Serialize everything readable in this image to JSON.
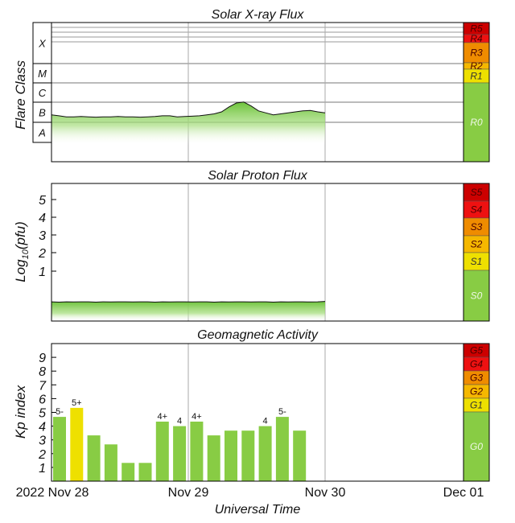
{
  "chart_data": [
    {
      "type": "area",
      "title": "Solar X-ray Flux",
      "ylabel": "Flare Class",
      "flare_classes": [
        "X",
        "M",
        "C",
        "B",
        "A"
      ],
      "x_labels": [
        "2022 Nov 28",
        "Nov 29",
        "Nov 30",
        "Dec 01"
      ],
      "xlabel": "Universal Time",
      "series": [
        {
          "values": [
            2.4,
            2.35,
            2.3,
            2.3,
            2.32,
            2.3,
            2.28,
            2.3,
            2.3,
            2.32,
            2.3,
            2.3,
            2.28,
            2.3,
            2.32,
            2.35,
            2.35,
            2.3,
            2.32,
            2.33,
            2.35,
            2.4,
            2.45,
            2.55,
            2.8,
            3.0,
            3.05,
            2.85,
            2.6,
            2.5,
            2.4,
            2.45,
            2.5,
            2.55,
            2.6,
            2.62,
            2.55,
            2.5
          ]
        }
      ],
      "scale": [
        {
          "label": "R5",
          "color": "#cc0000"
        },
        {
          "label": "R4",
          "color": "#ee1111"
        },
        {
          "label": "R3",
          "color": "#ef8c00"
        },
        {
          "label": "R2",
          "color": "#f5b800"
        },
        {
          "label": "R1",
          "color": "#eee000"
        },
        {
          "label": "R0",
          "color": "#88cc44"
        }
      ]
    },
    {
      "type": "area",
      "title": "Solar Proton Flux",
      "ylabel": "Log10(pfu)",
      "ylabel_main": "Log",
      "ylabel_sub": "10",
      "ylabel_tail": "(pfu)",
      "yticks": [
        "5",
        "4",
        "3",
        "2",
        "1"
      ],
      "series": [
        {
          "values": [
            -0.7,
            -0.72,
            -0.7,
            -0.71,
            -0.7,
            -0.7,
            -0.72,
            -0.7,
            -0.71,
            -0.7,
            -0.7,
            -0.71,
            -0.7,
            -0.7,
            -0.72,
            -0.7,
            -0.71,
            -0.7,
            -0.7,
            -0.71,
            -0.7,
            -0.7,
            -0.72,
            -0.7,
            -0.71,
            -0.7,
            -0.7,
            -0.71,
            -0.7,
            -0.7,
            -0.72,
            -0.7,
            -0.71,
            -0.7,
            -0.7,
            -0.71,
            -0.7,
            -0.68
          ]
        }
      ],
      "scale": [
        {
          "label": "S5",
          "color": "#cc0000"
        },
        {
          "label": "S4",
          "color": "#ee1111"
        },
        {
          "label": "S3",
          "color": "#ef8c00"
        },
        {
          "label": "S2",
          "color": "#f5b800"
        },
        {
          "label": "S1",
          "color": "#eee000"
        },
        {
          "label": "S0",
          "color": "#88cc44"
        }
      ]
    },
    {
      "type": "bar",
      "title": "Geomagnetic Activity",
      "ylabel": "Kp index",
      "yticks": [
        "9",
        "8",
        "7",
        "6",
        "5",
        "4",
        "3",
        "2",
        "1"
      ],
      "ylim": [
        0,
        10
      ],
      "values": [
        4.67,
        5.33,
        3.33,
        2.67,
        1.33,
        1.33,
        4.33,
        4.0,
        4.33,
        3.33,
        3.67,
        3.67,
        4.0,
        4.67,
        3.67
      ],
      "bar_labels": [
        "5-",
        "5+",
        "",
        "",
        "",
        "",
        "4+",
        "4",
        "4+",
        "",
        "",
        "",
        "4",
        "5-",
        ""
      ],
      "bar_colors": [
        "#88cc44",
        "#eee000",
        "#88cc44",
        "#88cc44",
        "#88cc44",
        "#88cc44",
        "#88cc44",
        "#88cc44",
        "#88cc44",
        "#88cc44",
        "#88cc44",
        "#88cc44",
        "#88cc44",
        "#88cc44",
        "#88cc44"
      ],
      "x_labels": [
        "2022 Nov 28",
        "Nov 29",
        "Nov 30",
        "Dec 01"
      ],
      "xlabel": "Universal Time",
      "scale": [
        {
          "label": "G5",
          "color": "#cc0000"
        },
        {
          "label": "G4",
          "color": "#ee1111"
        },
        {
          "label": "G3",
          "color": "#ef8c00"
        },
        {
          "label": "G2",
          "color": "#f5b800"
        },
        {
          "label": "G1",
          "color": "#eee000"
        },
        {
          "label": "G0",
          "color": "#88cc44"
        }
      ]
    }
  ]
}
